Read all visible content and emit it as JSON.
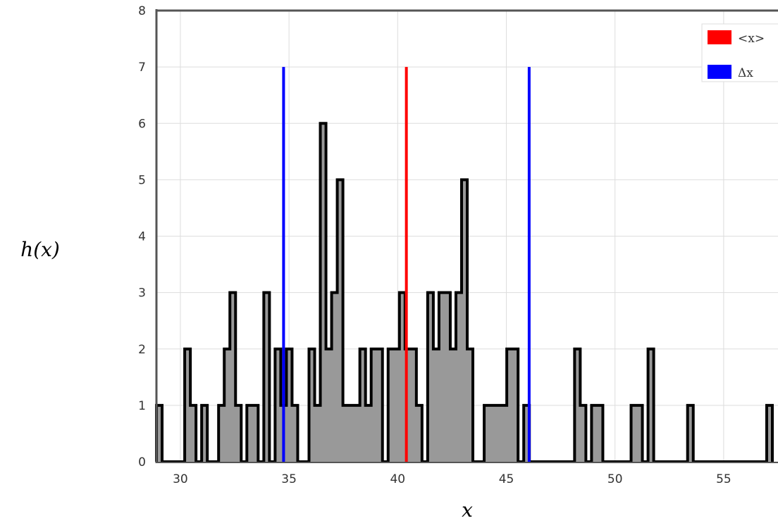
{
  "chart_data": {
    "type": "histogram",
    "title": "",
    "xlabel": "x",
    "ylabel": "h(x)",
    "xlim": [
      28.9,
      57.5
    ],
    "ylim": [
      0,
      8
    ],
    "x_ticks": [
      30,
      35,
      40,
      45,
      50,
      55
    ],
    "y_ticks": [
      0,
      1,
      2,
      3,
      4,
      5,
      6,
      7,
      8
    ],
    "grid": true,
    "legend_position": "top-right",
    "bin_width": 0.26,
    "bins_start": 28.9,
    "counts": [
      1,
      0,
      0,
      0,
      0,
      2,
      1,
      0,
      1,
      0,
      0,
      1,
      2,
      3,
      1,
      0,
      1,
      1,
      0,
      3,
      0,
      2,
      1,
      2,
      1,
      0,
      0,
      2,
      1,
      6,
      2,
      3,
      5,
      1,
      1,
      1,
      2,
      1,
      2,
      2,
      0,
      2,
      2,
      3,
      2,
      2,
      1,
      0,
      3,
      2,
      3,
      3,
      2,
      3,
      5,
      2,
      0,
      0,
      1,
      1,
      1,
      1,
      2,
      2,
      0,
      1,
      0,
      0,
      0,
      0,
      0,
      0,
      0,
      0,
      2,
      1,
      0,
      1,
      1,
      0,
      0,
      0,
      0,
      0,
      1,
      1,
      0,
      2,
      0,
      0,
      0,
      0,
      0,
      0,
      1,
      0,
      0,
      0,
      0,
      0,
      0,
      0,
      0,
      0,
      0,
      0,
      0,
      0,
      1
    ],
    "series": [
      {
        "name": "<x>",
        "type": "vline",
        "x": 40.4,
        "y_top": 7,
        "color": "#ff0000"
      },
      {
        "name": "Δx",
        "type": "vline",
        "x": [
          34.75,
          46.05
        ],
        "y_top": 7,
        "color": "#0000ff"
      }
    ],
    "colors": {
      "fill": "#999999",
      "outline": "#000000",
      "grid": "#dddddd",
      "frame": "#555555"
    }
  }
}
